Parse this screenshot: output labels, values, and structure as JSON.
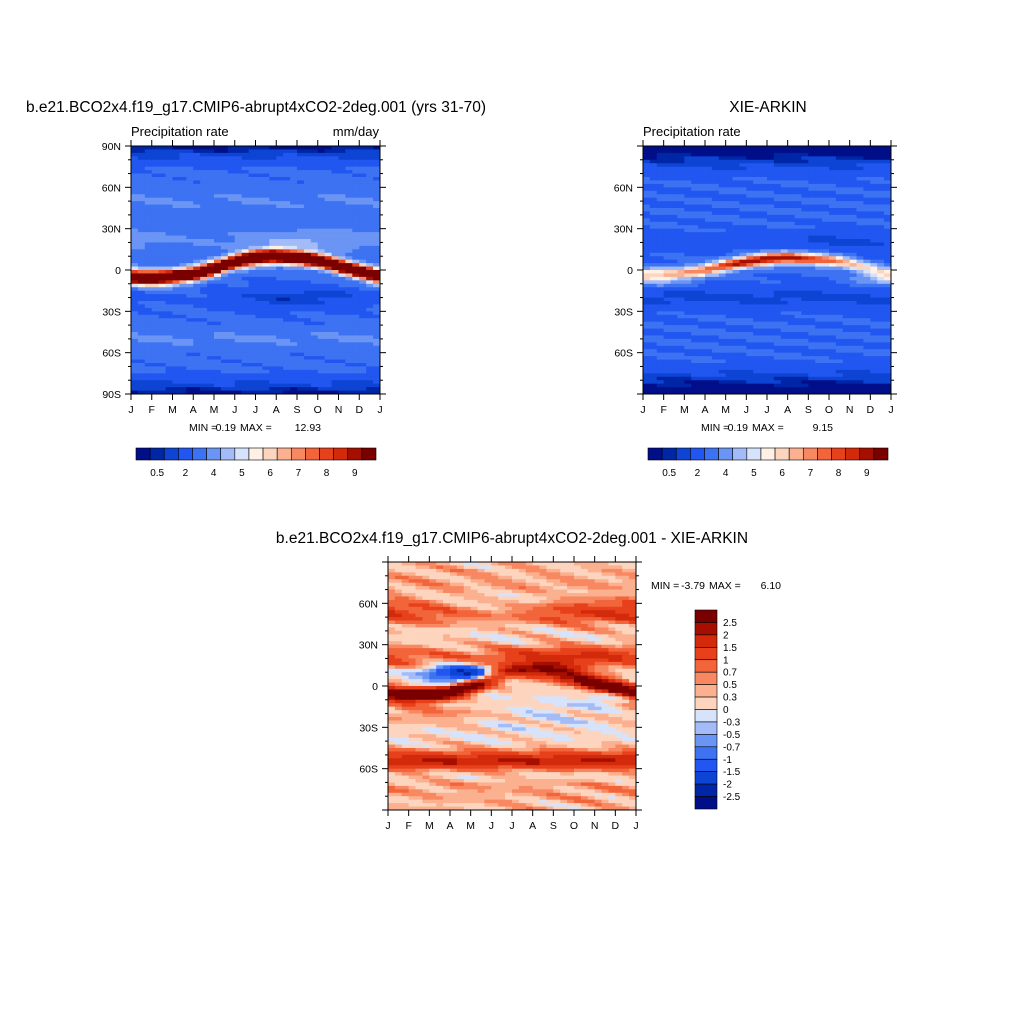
{
  "palette": {
    "fill_colors": [
      "#000f89",
      "#0026a8",
      "#0d44d4",
      "#2157f0",
      "#3d72f2",
      "#6a95f4",
      "#a3bcf7",
      "#d6e3fb",
      "#fff0e6",
      "#fdd5bf",
      "#fbb08f",
      "#f88861",
      "#f2643a",
      "#e7411c",
      "#d22a0a",
      "#a60f00",
      "#7a0000"
    ],
    "axis_color": "#000000"
  },
  "chart_data": [
    {
      "type": "heatmap",
      "title": "b.e21.BCO2x4.f19_g17.CMIP6-abrupt4xCO2-2deg.001 (yrs 31-70)",
      "left_label": "Precipitation rate",
      "right_label": "mm/day",
      "x_ticks": [
        "J",
        "F",
        "M",
        "A",
        "M",
        "J",
        "J",
        "A",
        "S",
        "O",
        "N",
        "D",
        "J"
      ],
      "y_ticks": [
        "90N",
        "60N",
        "30N",
        "0",
        "30S",
        "60S",
        "90S"
      ],
      "ylim": [
        -90,
        90
      ],
      "min": "0.19",
      "max": "12.93",
      "min_label": "MIN =",
      "max_label": "MAX =",
      "colorbar": {
        "levels": [
          0.25,
          0.5,
          1,
          2,
          3,
          4,
          5,
          5.5,
          6,
          6.5,
          7,
          7.5,
          8,
          8.5,
          9,
          9.5
        ],
        "tick_labels": [
          "0.5",
          "2",
          "4",
          "5",
          "6",
          "7",
          "8",
          "9"
        ],
        "orientation": "horizontal"
      },
      "itcz": {
        "lat_by_month": [
          -5,
          -6,
          -5,
          -3,
          1,
          6,
          9,
          10,
          9,
          7,
          3,
          -1,
          -5
        ],
        "peak_value": 12.93
      }
    },
    {
      "type": "heatmap",
      "title": "XIE-ARKIN",
      "left_label": "Precipitation rate",
      "right_label": "",
      "x_ticks": [
        "J",
        "F",
        "M",
        "A",
        "M",
        "J",
        "J",
        "A",
        "S",
        "O",
        "N",
        "D",
        "J"
      ],
      "y_ticks": [
        "60N",
        "30N",
        "0",
        "30S",
        "60S"
      ],
      "ylim": [
        -90,
        90
      ],
      "min": "0.19",
      "max": "9.15",
      "min_label": "MIN =",
      "max_label": "MAX =",
      "colorbar": {
        "levels": [
          0.25,
          0.5,
          1,
          2,
          3,
          4,
          5,
          5.5,
          6,
          6.5,
          7,
          7.5,
          8,
          8.5,
          9,
          9.5
        ],
        "tick_labels": [
          "0.5",
          "2",
          "4",
          "5",
          "6",
          "7",
          "8",
          "9"
        ],
        "orientation": "horizontal"
      },
      "itcz": {
        "lat_by_month": [
          -3,
          -3,
          -2,
          0,
          3,
          6,
          8,
          9,
          8,
          7,
          5,
          0,
          -3
        ],
        "peak_value": 9.15
      }
    },
    {
      "type": "heatmap",
      "title": "b.e21.BCO2x4.f19_g17.CMIP6-abrupt4xCO2-2deg.001 - XIE-ARKIN",
      "left_label": "",
      "right_label": "",
      "x_ticks": [
        "J",
        "F",
        "M",
        "A",
        "M",
        "J",
        "J",
        "A",
        "S",
        "O",
        "N",
        "D",
        "J"
      ],
      "y_ticks": [
        "60N",
        "30N",
        "0",
        "30S",
        "60S"
      ],
      "ylim": [
        -90,
        90
      ],
      "min": "-3.79",
      "max": "6.10",
      "min_label": "MIN =",
      "max_label": "MAX =",
      "colorbar": {
        "levels": [
          -2.5,
          -2,
          -1.5,
          -1,
          -0.7,
          -0.5,
          -0.3,
          0,
          0.3,
          0.5,
          0.7,
          1,
          1.5,
          2,
          2.5
        ],
        "tick_labels": [
          "-2.5",
          "-2",
          "-1.5",
          "-1",
          "-0.7",
          "-0.5",
          "-0.3",
          "0",
          "0.3",
          "0.5",
          "0.7",
          "1",
          "1.5",
          "2",
          "2.5"
        ],
        "orientation": "vertical"
      }
    }
  ]
}
